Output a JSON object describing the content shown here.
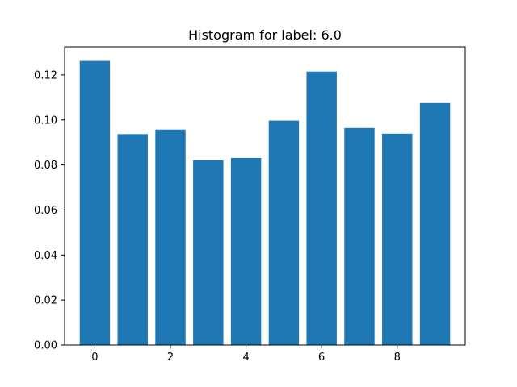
{
  "chart_data": {
    "type": "bar",
    "title": "Histogram for label: 6.0",
    "xlabel": "",
    "ylabel": "",
    "categories": [
      0,
      1,
      2,
      3,
      4,
      5,
      6,
      7,
      8,
      9
    ],
    "values": [
      0.1262,
      0.0937,
      0.0957,
      0.0821,
      0.0831,
      0.0997,
      0.1215,
      0.0964,
      0.0939,
      0.1075
    ],
    "xlim": [
      -0.8,
      9.8
    ],
    "ylim": [
      0.0,
      0.1325
    ],
    "xticks": [
      0,
      2,
      4,
      6,
      8
    ],
    "xtick_labels": [
      "0",
      "2",
      "4",
      "6",
      "8"
    ],
    "yticks": [
      0.0,
      0.02,
      0.04,
      0.06,
      0.08,
      0.1,
      0.12
    ],
    "ytick_labels": [
      "0.00",
      "0.02",
      "0.04",
      "0.06",
      "0.08",
      "0.10",
      "0.12"
    ],
    "bar_width": 0.8,
    "bar_color": "#1f77b4",
    "grid": false,
    "legend": "none"
  }
}
